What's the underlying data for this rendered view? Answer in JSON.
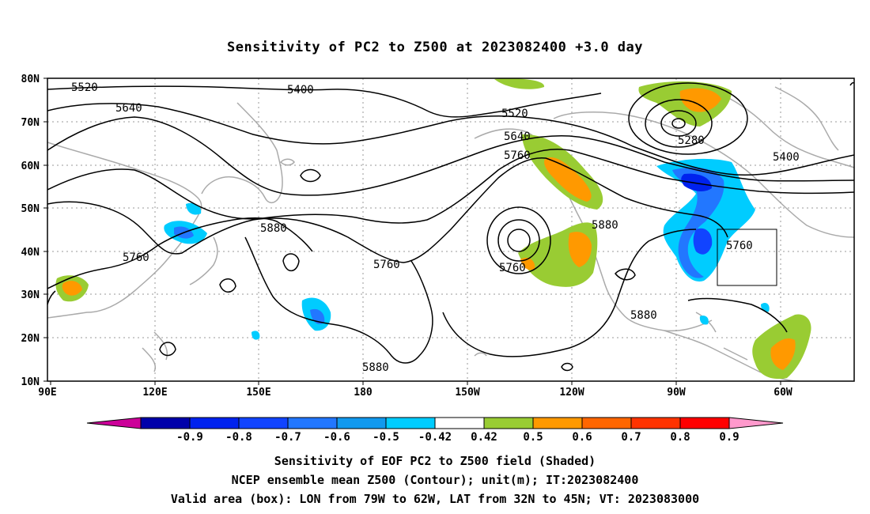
{
  "title": "Sensitivity of PC2 to Z500 at 2023082400 +3.0 day",
  "lat_labels": [
    "80N",
    "70N",
    "60N",
    "50N",
    "40N",
    "30N",
    "20N",
    "10N"
  ],
  "lon_labels": [
    "90E",
    "120E",
    "150E",
    "180",
    "150W",
    "120W",
    "90W",
    "60W"
  ],
  "contour_labels": [
    "5520",
    "5400",
    "5640",
    "5520",
    "5640",
    "5760",
    "5280",
    "5400",
    "5880",
    "5760",
    "5880",
    "5760",
    "5760",
    "5760",
    "5880",
    "5880"
  ],
  "colorbar": {
    "labels": [
      "-0.9",
      "-0.8",
      "-0.7",
      "-0.6",
      "-0.5",
      "-0.42",
      "0.42",
      "0.5",
      "0.6",
      "0.7",
      "0.8",
      "0.9"
    ],
    "colors": [
      "#cc0099",
      "#0000aa",
      "#0022ee",
      "#1144ff",
      "#2277ff",
      "#1199ee",
      "#00ccff",
      "#ffffff",
      "#99cc33",
      "#ff9900",
      "#ff6600",
      "#ff3300",
      "#ff0000",
      "#ff99cc"
    ]
  },
  "captions": [
    "Sensitivity of EOF PC2 to Z500 field (Shaded)",
    "NCEP ensemble mean Z500 (Contour); unit(m); IT:2023082400",
    "Valid area (box): LON from 79W to 62W, LAT from 32N to 45N; VT: 2023083000"
  ]
}
